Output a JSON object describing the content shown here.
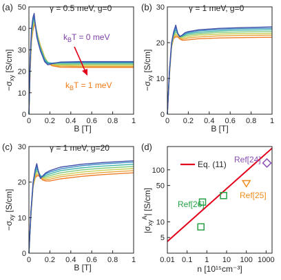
{
  "colors": {
    "curve_gradient": [
      "#3f4fa8",
      "#3b8cc4",
      "#3fb5a6",
      "#7fc97a",
      "#c6cf55",
      "#e9a53c",
      "#ef7c26"
    ],
    "fit_line": "#e2001a",
    "ref24": "#8a4fb5",
    "ref25": "#f08c1a",
    "ref26": "#25a044",
    "label_t0": "#7b3fa3",
    "label_t1": "#f07a16",
    "arrow": "#e2001a"
  },
  "chart_data": [
    {
      "type": "line",
      "panel": "(a)",
      "annotation": "γ = 0.5 meV, g=0",
      "xlabel": "B [T]",
      "ylabel": "−σxy [S/cm]",
      "xlim": [
        0,
        1
      ],
      "ylim": [
        0,
        50
      ],
      "xticks": [
        0,
        0.2,
        0.4,
        0.6,
        0.8,
        1
      ],
      "xtick_labels": [
        "0",
        "0.2",
        "0.4",
        "0.6",
        "0.8",
        "1"
      ],
      "yticks": [
        0,
        10,
        20,
        30,
        40,
        50
      ],
      "labels": [
        {
          "text": "kBT = 0 meV",
          "main": "k",
          "sub": "B",
          "rest": "T = 0 meV",
          "color": "#7b3fa3"
        },
        {
          "text": "kBT = 1 meV",
          "main": "k",
          "sub": "B",
          "rest": "T = 1 meV",
          "color": "#f07a16"
        }
      ],
      "series": [
        {
          "x": [
            0,
            0.012,
            0.025,
            0.038,
            0.05,
            0.06,
            0.075,
            0.09,
            0.11,
            0.13,
            0.15,
            0.18,
            0.22,
            0.3,
            0.5,
            1.0
          ],
          "values": [
            0,
            26,
            40,
            45,
            47,
            42,
            36,
            33,
            29.5,
            27,
            24.5,
            23,
            23.5,
            24.3,
            24.5,
            24.5
          ]
        },
        {
          "x": [
            0,
            0.012,
            0.025,
            0.038,
            0.05,
            0.06,
            0.075,
            0.09,
            0.11,
            0.13,
            0.15,
            0.18,
            0.22,
            0.3,
            0.5,
            1.0
          ],
          "values": [
            0,
            25,
            39,
            44,
            45.5,
            42.5,
            37,
            33.5,
            30,
            27.5,
            25,
            23.6,
            23.8,
            24.1,
            24.2,
            24.2
          ]
        },
        {
          "x": [
            0,
            0.012,
            0.025,
            0.038,
            0.05,
            0.06,
            0.075,
            0.09,
            0.11,
            0.13,
            0.15,
            0.18,
            0.22,
            0.3,
            0.5,
            1.0
          ],
          "values": [
            0,
            24,
            38,
            43,
            44.5,
            42.5,
            37.5,
            34,
            30.5,
            28,
            25.6,
            24,
            23.8,
            23.8,
            23.8,
            23.8
          ]
        },
        {
          "x": [
            0,
            0.012,
            0.025,
            0.038,
            0.05,
            0.06,
            0.075,
            0.09,
            0.11,
            0.13,
            0.15,
            0.18,
            0.22,
            0.3,
            0.5,
            1.0
          ],
          "values": [
            0,
            23,
            37,
            42,
            43.5,
            42.3,
            38,
            34.5,
            31,
            28.5,
            26,
            24.2,
            23.5,
            23.3,
            23.3,
            23.3
          ]
        },
        {
          "x": [
            0,
            0.012,
            0.025,
            0.038,
            0.05,
            0.06,
            0.075,
            0.09,
            0.11,
            0.13,
            0.15,
            0.18,
            0.22,
            0.3,
            0.5,
            1.0
          ],
          "values": [
            0,
            22,
            36,
            41,
            42.7,
            42,
            38.3,
            35,
            31.5,
            29,
            26.3,
            24.3,
            23.2,
            22.9,
            22.8,
            22.8
          ]
        },
        {
          "x": [
            0,
            0.012,
            0.025,
            0.038,
            0.05,
            0.06,
            0.075,
            0.09,
            0.11,
            0.13,
            0.15,
            0.18,
            0.22,
            0.3,
            0.5,
            1.0
          ],
          "values": [
            0,
            21,
            35,
            40,
            42,
            41.6,
            38.5,
            35.2,
            31.8,
            29.2,
            26.5,
            24.2,
            22.9,
            22.4,
            22.3,
            22.3
          ]
        },
        {
          "x": [
            0,
            0.012,
            0.025,
            0.038,
            0.05,
            0.06,
            0.075,
            0.09,
            0.11,
            0.13,
            0.15,
            0.18,
            0.22,
            0.3,
            0.5,
            1.0
          ],
          "values": [
            0,
            20,
            34,
            39,
            41.3,
            41.2,
            38.6,
            35.4,
            32,
            29.4,
            26.6,
            24,
            22.6,
            21.9,
            21.8,
            21.8
          ]
        }
      ]
    },
    {
      "type": "line",
      "panel": "(b)",
      "annotation": "γ = 1 meV, g=0",
      "xlabel": "B [T]",
      "ylabel": "−σxy [S/cm]",
      "xlim": [
        0,
        1
      ],
      "ylim": [
        0,
        30
      ],
      "xticks": [
        0,
        0.2,
        0.4,
        0.6,
        0.8,
        1
      ],
      "xtick_labels": [
        "0",
        "0.2",
        "0.4",
        "0.6",
        "0.8",
        "1"
      ],
      "yticks": [
        0,
        10,
        20,
        30
      ],
      "series": [
        {
          "x": [
            0,
            0.02,
            0.04,
            0.06,
            0.08,
            0.1,
            0.12,
            0.14,
            0.17,
            0.2,
            0.3,
            0.5,
            0.7,
            1.0
          ],
          "values": [
            0,
            12,
            20,
            23,
            24.9,
            22.5,
            21.6,
            22.1,
            22.8,
            23.1,
            23.6,
            24.0,
            24.2,
            24.4
          ]
        },
        {
          "x": [
            0,
            0.02,
            0.04,
            0.06,
            0.08,
            0.1,
            0.12,
            0.14,
            0.17,
            0.2,
            0.3,
            0.5,
            0.7,
            1.0
          ],
          "values": [
            0,
            11.8,
            19.8,
            22.7,
            24.2,
            22.6,
            21.8,
            22.0,
            22.5,
            22.8,
            23.3,
            23.7,
            23.9,
            24.0
          ]
        },
        {
          "x": [
            0,
            0.02,
            0.04,
            0.06,
            0.08,
            0.1,
            0.12,
            0.14,
            0.17,
            0.2,
            0.3,
            0.5,
            0.7,
            1.0
          ],
          "values": [
            0,
            11.6,
            19.6,
            22.4,
            23.5,
            22.6,
            21.8,
            21.8,
            22.2,
            22.5,
            22.9,
            23.3,
            23.5,
            23.6
          ]
        },
        {
          "x": [
            0,
            0.02,
            0.04,
            0.06,
            0.08,
            0.1,
            0.12,
            0.14,
            0.17,
            0.2,
            0.3,
            0.5,
            0.7,
            1.0
          ],
          "values": [
            0,
            11.4,
            19.4,
            22.1,
            22.9,
            22.5,
            21.7,
            21.6,
            21.9,
            22.1,
            22.5,
            22.9,
            23.0,
            23.1
          ]
        },
        {
          "x": [
            0,
            0.02,
            0.04,
            0.06,
            0.08,
            0.1,
            0.12,
            0.14,
            0.17,
            0.2,
            0.3,
            0.5,
            0.7,
            1.0
          ],
          "values": [
            0,
            11.2,
            19.2,
            21.8,
            22.4,
            22.2,
            21.5,
            21.3,
            21.5,
            21.7,
            22.1,
            22.4,
            22.5,
            22.6
          ]
        },
        {
          "x": [
            0,
            0.02,
            0.04,
            0.06,
            0.08,
            0.1,
            0.12,
            0.14,
            0.17,
            0.2,
            0.3,
            0.5,
            0.7,
            1.0
          ],
          "values": [
            0,
            11.0,
            19.0,
            21.5,
            22.0,
            21.9,
            21.3,
            21.0,
            21.1,
            21.3,
            21.6,
            21.9,
            22.0,
            22.1
          ]
        },
        {
          "x": [
            0,
            0.02,
            0.04,
            0.06,
            0.08,
            0.1,
            0.12,
            0.14,
            0.17,
            0.2,
            0.3,
            0.5,
            0.7,
            1.0
          ],
          "values": [
            0,
            10.8,
            18.8,
            21.2,
            21.6,
            21.6,
            21.0,
            20.7,
            20.7,
            20.8,
            21.1,
            21.3,
            21.4,
            21.5
          ]
        }
      ]
    },
    {
      "type": "line",
      "panel": "(c)",
      "annotation": "γ = 1 meV, g=20",
      "xlabel": "B [T]",
      "ylabel": "−σxy [S/cm]",
      "xlim": [
        0,
        1
      ],
      "ylim": [
        0,
        30
      ],
      "xticks": [
        0,
        0.2,
        0.4,
        0.6,
        0.8,
        1
      ],
      "xtick_labels": [
        "0",
        "0.2",
        "0.4",
        "0.6",
        "0.8",
        "1"
      ],
      "yticks": [
        0,
        10,
        20,
        30
      ],
      "series": [
        {
          "x": [
            0,
            0.02,
            0.04,
            0.06,
            0.075,
            0.09,
            0.11,
            0.13,
            0.16,
            0.2,
            0.3,
            0.5,
            0.7,
            1.0
          ],
          "values": [
            0,
            12,
            20,
            23.5,
            25.2,
            23,
            21,
            21.7,
            22.6,
            23.2,
            24.2,
            25.0,
            25.5,
            26.0
          ]
        },
        {
          "x": [
            0,
            0.02,
            0.04,
            0.06,
            0.075,
            0.09,
            0.11,
            0.13,
            0.16,
            0.2,
            0.3,
            0.5,
            0.7,
            1.0
          ],
          "values": [
            0,
            11.8,
            19.8,
            23.2,
            24.4,
            23.1,
            21.5,
            21.6,
            22.3,
            22.8,
            23.7,
            24.6,
            25.1,
            25.6
          ]
        },
        {
          "x": [
            0,
            0.02,
            0.04,
            0.06,
            0.075,
            0.09,
            0.11,
            0.13,
            0.16,
            0.2,
            0.3,
            0.5,
            0.7,
            1.0
          ],
          "values": [
            0,
            11.6,
            19.6,
            22.8,
            23.7,
            23.0,
            21.8,
            21.5,
            21.9,
            22.3,
            23.2,
            24.0,
            24.5,
            25.0
          ]
        },
        {
          "x": [
            0,
            0.02,
            0.04,
            0.06,
            0.075,
            0.09,
            0.11,
            0.13,
            0.16,
            0.2,
            0.3,
            0.5,
            0.7,
            1.0
          ],
          "values": [
            0,
            11.4,
            19.4,
            22.4,
            23.1,
            22.8,
            21.9,
            21.4,
            21.5,
            21.8,
            22.6,
            23.4,
            23.9,
            24.4
          ]
        },
        {
          "x": [
            0,
            0.02,
            0.04,
            0.06,
            0.075,
            0.09,
            0.11,
            0.13,
            0.16,
            0.2,
            0.3,
            0.5,
            0.7,
            1.0
          ],
          "values": [
            0,
            11.2,
            19.2,
            22.0,
            22.6,
            22.5,
            21.8,
            21.2,
            21.1,
            21.3,
            22.0,
            22.8,
            23.3,
            23.8
          ]
        },
        {
          "x": [
            0,
            0.02,
            0.04,
            0.06,
            0.075,
            0.09,
            0.11,
            0.13,
            0.16,
            0.2,
            0.3,
            0.5,
            0.7,
            1.0
          ],
          "values": [
            0,
            11.0,
            19.0,
            21.6,
            22.1,
            22.1,
            21.6,
            20.9,
            20.7,
            20.8,
            21.5,
            22.2,
            22.7,
            23.2
          ]
        },
        {
          "x": [
            0,
            0.02,
            0.04,
            0.06,
            0.075,
            0.09,
            0.11,
            0.13,
            0.16,
            0.2,
            0.3,
            0.5,
            0.7,
            1.0
          ],
          "values": [
            0,
            10.8,
            18.8,
            21.2,
            21.7,
            21.8,
            21.4,
            20.6,
            20.3,
            20.3,
            20.9,
            21.6,
            22.1,
            22.6
          ]
        }
      ]
    },
    {
      "type": "scatter",
      "panel": "(d)",
      "xlabel": "n [10¹⁵cm⁻³]",
      "ylabel": "|σxyᴬ| [S/cm]",
      "xscale": "log",
      "yscale": "log",
      "xlim": [
        0.01,
        2000
      ],
      "ylim": [
        2.5,
        280
      ],
      "xticks": [
        0.01,
        0.1,
        1,
        10,
        100,
        1000
      ],
      "xtick_labels": [
        "0.01",
        "0.1",
        "1",
        "10",
        "100",
        "1000"
      ],
      "yticks": [
        5,
        10,
        50,
        100
      ],
      "ytick_labels": [
        "5",
        "10",
        "50",
        "100"
      ],
      "legend": "top-left",
      "fit": {
        "name": "Eq. (11)",
        "x": [
          0.01,
          2000
        ],
        "values": [
          4.2,
          260
        ]
      },
      "points": [
        {
          "group": "Ref[26]",
          "marker": "square",
          "color": "#25a044",
          "x": 0.5,
          "y": 8
        },
        {
          "group": "Ref[26]",
          "marker": "square",
          "color": "#25a044",
          "x": 0.6,
          "y": 24
        },
        {
          "group": "Ref[26]",
          "marker": "square",
          "color": "#25a044",
          "x": 7,
          "y": 32
        },
        {
          "group": "Ref[25]",
          "marker": "triangle-down",
          "color": "#f08c1a",
          "x": 100,
          "y": 55
        },
        {
          "group": "Ref[24]",
          "marker": "diamond",
          "color": "#8a4fb5",
          "x": 1100,
          "y": 135
        }
      ],
      "point_labels": [
        {
          "text": "Ref[26]",
          "color": "#25a044"
        },
        {
          "text": "Ref[25]",
          "color": "#f08c1a"
        },
        {
          "text": "Ref[24]",
          "color": "#8a4fb5"
        }
      ]
    }
  ]
}
